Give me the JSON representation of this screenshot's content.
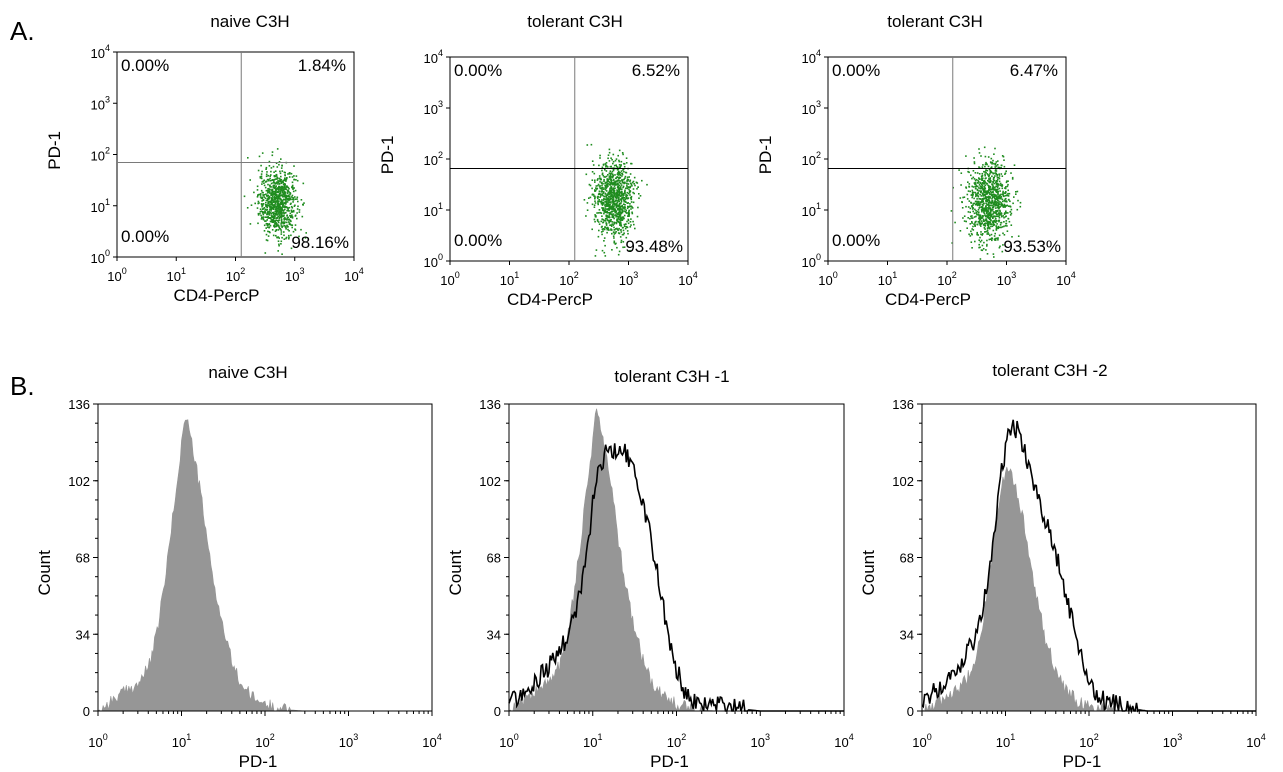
{
  "panel_labels": {
    "a": "A.",
    "b": "B."
  },
  "colors": {
    "dots": "#1f8c1f",
    "naive_fill": "#969696",
    "tolerant_line": "#000000",
    "quadrant_line": "#7a7a7a",
    "axis": "#000000"
  },
  "chart_data": [
    {
      "type": "scatter",
      "panel": "A",
      "title": "naive C3H",
      "xlabel": "CD4-PercP",
      "ylabel": "PD-1",
      "xscale": "log",
      "yscale": "log",
      "xlim": [
        1,
        10000
      ],
      "ylim": [
        1,
        10000
      ],
      "x_ticks": [
        "10^0",
        "10^1",
        "10^2",
        "10^3",
        "10^4"
      ],
      "y_ticks": [
        "10^0",
        "10^1",
        "10^2",
        "10^3",
        "10^4"
      ],
      "quadrant_gate": {
        "x": 125,
        "y": 70
      },
      "quadrants": {
        "upper_left": "0.00%",
        "upper_right": "1.84%",
        "lower_left": "0.00%",
        "lower_right": "98.16%"
      },
      "cluster": {
        "x_center": 500,
        "y_center": 12,
        "x_spread_decades": 0.16,
        "y_spread_decades": 0.33,
        "n_points": 900,
        "y_max": 200
      }
    },
    {
      "type": "scatter",
      "panel": "A",
      "title": "tolerant C3H",
      "xlabel": "CD4-PercP",
      "ylabel": "PD-1",
      "xscale": "log",
      "yscale": "log",
      "xlim": [
        1,
        10000
      ],
      "ylim": [
        1,
        10000
      ],
      "x_ticks": [
        "10^0",
        "10^1",
        "10^2",
        "10^3",
        "10^4"
      ],
      "y_ticks": [
        "10^0",
        "10^1",
        "10^2",
        "10^3",
        "10^4"
      ],
      "quadrant_gate": {
        "x": 125,
        "y": 65
      },
      "quadrants": {
        "upper_left": "0.00%",
        "upper_right": "6.52%",
        "lower_left": "0.00%",
        "lower_right": "93.48%"
      },
      "cluster": {
        "x_center": 550,
        "y_center": 16,
        "x_spread_decades": 0.17,
        "y_spread_decades": 0.38,
        "n_points": 1000,
        "y_max": 300
      }
    },
    {
      "type": "scatter",
      "panel": "A",
      "title": "tolerant C3H",
      "xlabel": "CD4-PercP",
      "ylabel": "PD-1",
      "xscale": "log",
      "yscale": "log",
      "xlim": [
        1,
        10000
      ],
      "ylim": [
        1,
        10000
      ],
      "x_ticks": [
        "10^0",
        "10^1",
        "10^2",
        "10^3",
        "10^4"
      ],
      "y_ticks": [
        "10^0",
        "10^1",
        "10^2",
        "10^3",
        "10^4"
      ],
      "quadrant_gate": {
        "x": 125,
        "y": 65
      },
      "quadrants": {
        "upper_left": "0.00%",
        "upper_right": "6.47%",
        "lower_left": "0.00%",
        "lower_right": "93.53%"
      },
      "cluster": {
        "x_center": 500,
        "y_center": 14,
        "x_spread_decades": 0.18,
        "y_spread_decades": 0.4,
        "n_points": 1000,
        "y_max": 300
      }
    },
    {
      "type": "area",
      "panel": "B",
      "title": "naive C3H",
      "xlabel": "PD-1",
      "ylabel": "Count",
      "xscale": "log",
      "xlim": [
        1,
        10000
      ],
      "ylim": [
        0,
        136
      ],
      "x_ticks": [
        "10^0",
        "10^1",
        "10^2",
        "10^3",
        "10^4"
      ],
      "y_ticks": [
        0,
        34,
        68,
        102,
        136
      ],
      "series": [
        {
          "style": "filled",
          "x": [
            1,
            1.5,
            2,
            3,
            4,
            5,
            6,
            7,
            8,
            9,
            10,
            11,
            12,
            14,
            16,
            18,
            20,
            25,
            30,
            40,
            50,
            70,
            100,
            150,
            200,
            300,
            500,
            1000,
            3000,
            10000
          ],
          "values": [
            0,
            5,
            8,
            12,
            19,
            33,
            52,
            70,
            88,
            104,
            118,
            131,
            127,
            114,
            102,
            90,
            76,
            55,
            40,
            22,
            13,
            6,
            3,
            1,
            0.5,
            0,
            0,
            0,
            0,
            0
          ]
        }
      ]
    },
    {
      "type": "area",
      "panel": "B",
      "title": "tolerant C3H -1",
      "xlabel": "PD-1",
      "ylabel": "Count",
      "xscale": "log",
      "xlim": [
        1,
        10000
      ],
      "ylim": [
        0,
        136
      ],
      "x_ticks": [
        "10^0",
        "10^1",
        "10^2",
        "10^3",
        "10^4"
      ],
      "y_ticks": [
        0,
        34,
        68,
        102,
        136
      ],
      "series": [
        {
          "style": "filled",
          "x": [
            1,
            1.5,
            2,
            3,
            4,
            5,
            6,
            7,
            8,
            9,
            10,
            11,
            12,
            14,
            16,
            18,
            20,
            25,
            30,
            40,
            50,
            70,
            100,
            150,
            200,
            300,
            500,
            1000,
            3000,
            10000
          ],
          "values": [
            0,
            5,
            8,
            13,
            20,
            34,
            53,
            72,
            90,
            106,
            120,
            133,
            128,
            115,
            103,
            90,
            76,
            55,
            40,
            22,
            13,
            6,
            3,
            1,
            0.5,
            0,
            0,
            0,
            0,
            0
          ]
        },
        {
          "style": "line",
          "x": [
            1,
            1.5,
            2,
            3,
            4,
            5,
            6,
            7,
            8,
            9,
            10,
            12,
            14,
            16,
            18,
            20,
            25,
            30,
            35,
            40,
            50,
            60,
            70,
            80,
            100,
            130,
            160,
            200,
            300,
            500,
            1000,
            3000,
            10000
          ],
          "values": [
            4,
            8,
            12,
            20,
            26,
            33,
            42,
            52,
            62,
            76,
            92,
            108,
            114,
            116,
            114,
            118,
            114,
            106,
            100,
            92,
            76,
            60,
            46,
            34,
            18,
            8,
            4,
            3,
            2,
            1,
            0,
            0,
            0
          ]
        }
      ]
    },
    {
      "type": "area",
      "panel": "B",
      "title": "tolerant C3H -2",
      "xlabel": "PD-1",
      "ylabel": "Count",
      "xscale": "log",
      "xlim": [
        1,
        10000
      ],
      "ylim": [
        0,
        136
      ],
      "x_ticks": [
        "10^0",
        "10^1",
        "10^2",
        "10^3",
        "10^4"
      ],
      "y_ticks": [
        0,
        34,
        68,
        102,
        136
      ],
      "series": [
        {
          "style": "filled",
          "x": [
            1,
            1.5,
            2,
            3,
            4,
            5,
            6,
            7,
            8,
            9,
            10,
            11,
            12,
            14,
            16,
            18,
            20,
            25,
            30,
            40,
            50,
            70,
            100,
            150,
            200,
            300,
            500,
            1000,
            3000,
            10000
          ],
          "values": [
            0,
            3,
            6,
            11,
            18,
            33,
            52,
            72,
            88,
            100,
            106,
            108,
            104,
            96,
            86,
            76,
            64,
            46,
            32,
            18,
            10,
            5,
            2,
            1,
            0.5,
            0,
            0,
            0,
            0,
            0
          ]
        },
        {
          "style": "line",
          "x": [
            1,
            1.5,
            2,
            3,
            4,
            5,
            6,
            7,
            8,
            9,
            10,
            11,
            12,
            14,
            16,
            18,
            20,
            25,
            30,
            40,
            50,
            60,
            70,
            80,
            100,
            130,
            160,
            200,
            300,
            500,
            1000,
            3000,
            10000
          ],
          "values": [
            5,
            9,
            14,
            22,
            30,
            40,
            55,
            72,
            90,
            106,
            116,
            122,
            126,
            124,
            118,
            112,
            106,
            94,
            84,
            70,
            56,
            44,
            34,
            26,
            14,
            7,
            4,
            3,
            1,
            0,
            0,
            0,
            0
          ]
        }
      ]
    }
  ]
}
